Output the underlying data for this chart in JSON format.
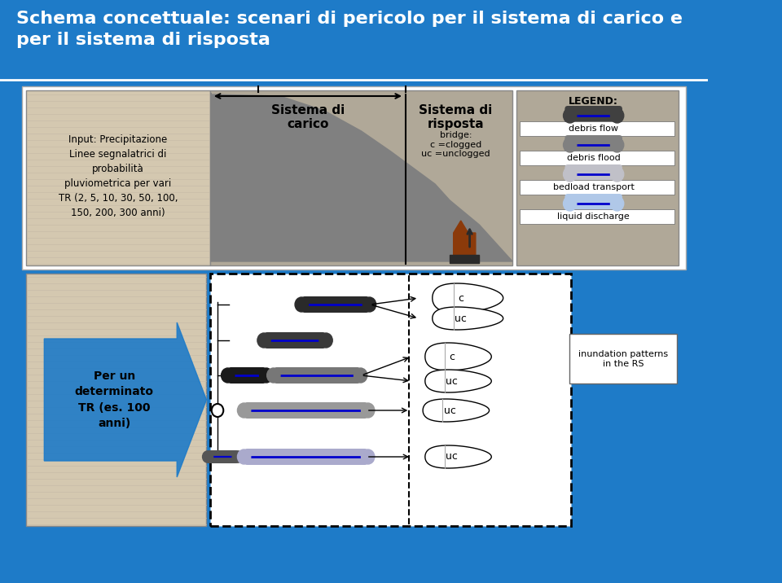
{
  "title": "Schema concettuale: scenari di pericolo per il sistema di carico e\nper il sistema di risposta",
  "title_color": "white",
  "bg_color": "#1e7bc8",
  "header_bg": "#1565a8",
  "main_bg": "white",
  "grid_bg": "#e8e0d0",
  "hatched_bg": "#d4c8b0",
  "legend_bg": "#b0a898",
  "left_text": "Input: Precipitazione\nLinee segnalatrici di\nprobabilità\npluviometrica per vari\nTR (2, 5, 10, 30, 50, 100,\n150, 200, 300 anni)",
  "center_label1": "Sistema di\ncarico",
  "center_label2": "Sistema di\nrisposta",
  "bridge_text": "bridge:\nc =clogged\nuc =unclogged",
  "legend_title": "LEGEND:",
  "legend_items": [
    "debris flow",
    "debris flood",
    "bedload transport",
    "liquid discharge"
  ],
  "bottom_left_text": "Per un\ndeterminato\nTR (es. 100\nanni)",
  "inundation_text": "inundation patterns\nin the RS",
  "c_labels": [
    "c",
    "uc",
    "c",
    "uc",
    "uc",
    "uc"
  ],
  "pipe_colors_dark": "#404040",
  "pipe_colors_mid": "#808080",
  "pipe_colors_light": "#b0b0b8",
  "pipe_blue": "#0000cc"
}
